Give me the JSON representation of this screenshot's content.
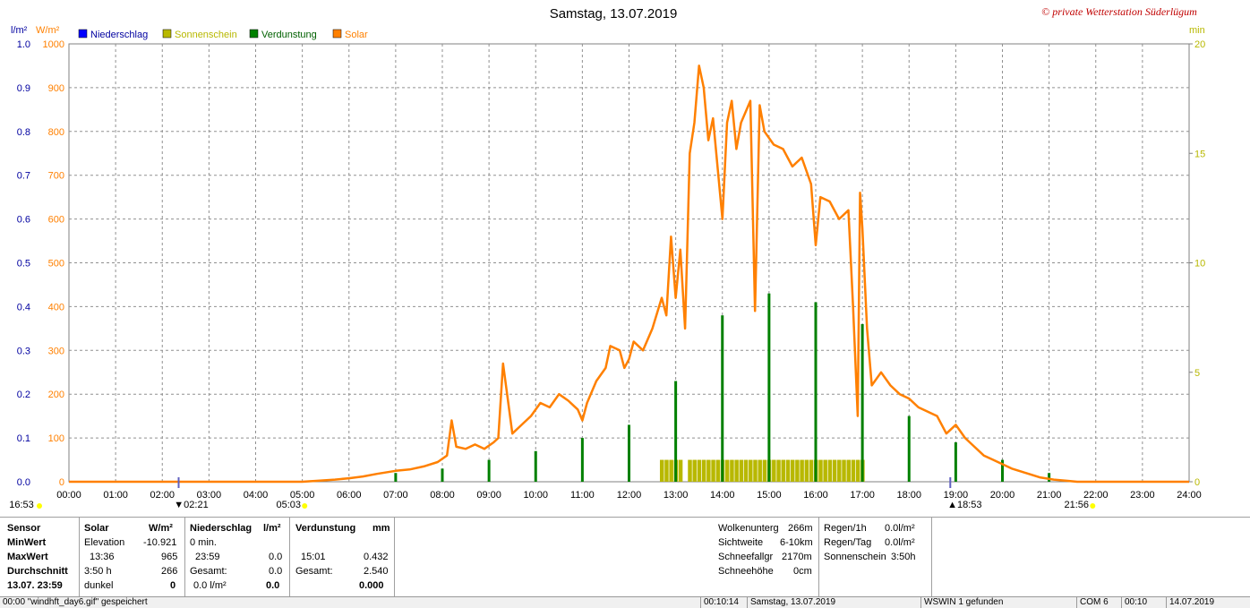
{
  "title": "Samstag, 13.07.2019",
  "copyright": "© private Wetterstation Süderlügum",
  "axis_units": {
    "left1": "l/m²",
    "left2": "W/m²",
    "right": "min"
  },
  "legend": [
    {
      "label": "Niederschlag",
      "color": "#0000ff"
    },
    {
      "label": "Sonnenschein",
      "color": "#b8b800"
    },
    {
      "label": "Verdunstung",
      "color": "#008000"
    },
    {
      "label": "Solar",
      "color": "#ff8000"
    }
  ],
  "sun_markers": {
    "sunrise": "05:03",
    "sunset": "21:56",
    "moonrise": "16:53",
    "moon_a": "02:21",
    "moon_b": "18:53"
  },
  "chart_data": {
    "type": "line",
    "title": "Samstag, 13.07.2019",
    "x_ticks": [
      "00:00",
      "01:00",
      "02:00",
      "03:00",
      "04:00",
      "05:00",
      "06:00",
      "07:00",
      "08:00",
      "09:00",
      "10:00",
      "11:00",
      "12:00",
      "13:00",
      "14:00",
      "15:00",
      "16:00",
      "17:00",
      "18:00",
      "19:00",
      "20:00",
      "21:00",
      "22:00",
      "23:00",
      "24:00"
    ],
    "x_range_hours": [
      0,
      24
    ],
    "y_left_solar_ticks": [
      0,
      100,
      200,
      300,
      400,
      500,
      600,
      700,
      800,
      900,
      1000
    ],
    "y_left_rain_ticks": [
      "0.0",
      "0.1",
      "0.2",
      "0.3",
      "0.4",
      "0.5",
      "0.6",
      "0.7",
      "0.8",
      "0.9",
      "1.0"
    ],
    "y_right_sun_ticks": [
      0,
      5,
      10,
      15,
      20
    ],
    "ylim_solar": [
      0,
      1000
    ],
    "ylim_sunshine_min": [
      0,
      20
    ],
    "grid": true,
    "series": [
      {
        "name": "Solar",
        "unit": "W/m²",
        "color": "#ff8000",
        "points": [
          [
            5.0,
            0
          ],
          [
            5.3,
            2
          ],
          [
            5.7,
            5
          ],
          [
            6.0,
            8
          ],
          [
            6.3,
            12
          ],
          [
            6.6,
            18
          ],
          [
            7.0,
            25
          ],
          [
            7.3,
            28
          ],
          [
            7.6,
            35
          ],
          [
            7.9,
            45
          ],
          [
            8.1,
            60
          ],
          [
            8.2,
            140
          ],
          [
            8.3,
            80
          ],
          [
            8.5,
            75
          ],
          [
            8.7,
            85
          ],
          [
            8.9,
            75
          ],
          [
            9.1,
            90
          ],
          [
            9.2,
            100
          ],
          [
            9.3,
            270
          ],
          [
            9.4,
            190
          ],
          [
            9.5,
            110
          ],
          [
            9.7,
            130
          ],
          [
            9.9,
            150
          ],
          [
            10.1,
            180
          ],
          [
            10.3,
            170
          ],
          [
            10.5,
            200
          ],
          [
            10.7,
            185
          ],
          [
            10.9,
            165
          ],
          [
            11.0,
            140
          ],
          [
            11.1,
            180
          ],
          [
            11.3,
            230
          ],
          [
            11.5,
            260
          ],
          [
            11.6,
            310
          ],
          [
            11.8,
            300
          ],
          [
            11.9,
            260
          ],
          [
            12.0,
            280
          ],
          [
            12.1,
            320
          ],
          [
            12.3,
            300
          ],
          [
            12.5,
            350
          ],
          [
            12.7,
            420
          ],
          [
            12.8,
            380
          ],
          [
            12.9,
            560
          ],
          [
            13.0,
            420
          ],
          [
            13.1,
            530
          ],
          [
            13.2,
            350
          ],
          [
            13.3,
            750
          ],
          [
            13.4,
            820
          ],
          [
            13.5,
            950
          ],
          [
            13.6,
            900
          ],
          [
            13.7,
            780
          ],
          [
            13.8,
            830
          ],
          [
            14.0,
            600
          ],
          [
            14.1,
            820
          ],
          [
            14.2,
            870
          ],
          [
            14.3,
            760
          ],
          [
            14.4,
            820
          ],
          [
            14.6,
            870
          ],
          [
            14.7,
            390
          ],
          [
            14.8,
            860
          ],
          [
            14.9,
            800
          ],
          [
            15.1,
            770
          ],
          [
            15.3,
            760
          ],
          [
            15.5,
            720
          ],
          [
            15.7,
            740
          ],
          [
            15.9,
            680
          ],
          [
            16.0,
            540
          ],
          [
            16.1,
            650
          ],
          [
            16.3,
            640
          ],
          [
            16.5,
            600
          ],
          [
            16.7,
            620
          ],
          [
            16.8,
            400
          ],
          [
            16.9,
            150
          ],
          [
            16.95,
            660
          ],
          [
            17.0,
            580
          ],
          [
            17.1,
            350
          ],
          [
            17.2,
            220
          ],
          [
            17.4,
            250
          ],
          [
            17.6,
            220
          ],
          [
            17.8,
            200
          ],
          [
            18.0,
            190
          ],
          [
            18.2,
            170
          ],
          [
            18.4,
            160
          ],
          [
            18.6,
            150
          ],
          [
            18.8,
            110
          ],
          [
            19.0,
            130
          ],
          [
            19.2,
            100
          ],
          [
            19.4,
            80
          ],
          [
            19.6,
            60
          ],
          [
            19.8,
            50
          ],
          [
            20.0,
            40
          ],
          [
            20.2,
            30
          ],
          [
            20.5,
            20
          ],
          [
            20.8,
            10
          ],
          [
            21.1,
            5
          ],
          [
            21.4,
            2
          ],
          [
            21.6,
            0
          ]
        ]
      },
      {
        "name": "Sonnenschein",
        "unit": "min",
        "color": "#b8b800",
        "bars": [
          [
            12.7,
            1
          ],
          [
            12.8,
            1
          ],
          [
            12.9,
            1
          ],
          [
            13.0,
            1
          ],
          [
            13.1,
            1
          ],
          [
            13.3,
            1
          ],
          [
            13.4,
            1
          ],
          [
            13.5,
            1
          ],
          [
            13.6,
            1
          ],
          [
            13.7,
            1
          ],
          [
            13.8,
            1
          ],
          [
            13.9,
            1
          ],
          [
            14.0,
            1
          ],
          [
            14.1,
            1
          ],
          [
            14.2,
            1
          ],
          [
            14.3,
            1
          ],
          [
            14.4,
            1
          ],
          [
            14.5,
            1
          ],
          [
            14.6,
            1
          ],
          [
            14.7,
            1
          ],
          [
            14.8,
            1
          ],
          [
            14.9,
            1
          ],
          [
            15.0,
            1
          ],
          [
            15.1,
            1
          ],
          [
            15.2,
            1
          ],
          [
            15.3,
            1
          ],
          [
            15.4,
            1
          ],
          [
            15.5,
            1
          ],
          [
            15.6,
            1
          ],
          [
            15.7,
            1
          ],
          [
            15.8,
            1
          ],
          [
            15.9,
            1
          ],
          [
            16.0,
            1
          ],
          [
            16.1,
            1
          ],
          [
            16.2,
            1
          ],
          [
            16.3,
            1
          ],
          [
            16.4,
            1
          ],
          [
            16.5,
            1
          ],
          [
            16.6,
            1
          ],
          [
            16.7,
            1
          ],
          [
            16.8,
            1
          ],
          [
            16.9,
            1
          ],
          [
            17.0,
            1
          ]
        ]
      },
      {
        "name": "Verdunstung",
        "unit": "mm",
        "color": "#008000",
        "bars": [
          [
            7.0,
            0.02
          ],
          [
            8.0,
            0.03
          ],
          [
            9.0,
            0.05
          ],
          [
            10.0,
            0.07
          ],
          [
            11.0,
            0.1
          ],
          [
            12.0,
            0.13
          ],
          [
            13.0,
            0.23
          ],
          [
            14.0,
            0.38
          ],
          [
            15.0,
            0.43
          ],
          [
            16.0,
            0.41
          ],
          [
            17.0,
            0.36
          ],
          [
            18.0,
            0.15
          ],
          [
            19.0,
            0.09
          ],
          [
            20.0,
            0.05
          ],
          [
            21.0,
            0.02
          ]
        ]
      },
      {
        "name": "Niederschlag",
        "unit": "l/m²",
        "color": "#0000ff",
        "bars": []
      }
    ]
  },
  "panel": {
    "headers": {
      "sensor": "Sensor",
      "solar": "Solar",
      "solar_unit": "W/m²",
      "rain": "Niederschlag",
      "rain_unit": "l/m²",
      "evap": "Verdunstung",
      "evap_unit": "mm"
    },
    "rows": {
      "min_label": "MinWert",
      "max_label": "MaxWert",
      "avg_label": "Durchschnitt",
      "date_label": "13.07.  23:59"
    },
    "solar": {
      "r1a": "Elevation",
      "r1b": "-10.921",
      "r2a": "13:36",
      "r2b": "965",
      "r3a": "3:50 h",
      "r3b": "266",
      "r4a": "dunkel",
      "r4b": "0"
    },
    "rain": {
      "r1a": "0 min.",
      "r2a": "23:59",
      "r2b": "0.0",
      "r3a": "Gesamt:",
      "r3b": "0.0",
      "r4a": "0.0 l/m²",
      "r4b": "0.0"
    },
    "evap": {
      "r2a": "15:01",
      "r2b": "0.432",
      "r3a": "Gesamt:",
      "r3b": "2.540",
      "r4b": "0.000"
    },
    "cloud": {
      "l1": "Wolkenunterg",
      "v1": "266m",
      "l2": "Sichtweite",
      "v2": "6-10km",
      "l3": "Schneefallgr",
      "v3": "2170m",
      "l4": "Schneehöhe",
      "v4": "0cm"
    },
    "rainrate": {
      "l1": "Regen/1h",
      "v1": "0.0l/m²",
      "l2": "Regen/Tag",
      "v2": "0.0l/m²",
      "l3": "Sonnenschein",
      "v3": "3:50h"
    }
  },
  "statusbar": {
    "s1": "00:00  \"windhft_day6.gif\" gespeichert",
    "s2": "00:10:14",
    "s3": "Samstag, 13.07.2019",
    "s4": "WSWIN 1 gefunden",
    "s5": "COM 6",
    "s6": "00:10",
    "s7": "14.07.2019"
  }
}
